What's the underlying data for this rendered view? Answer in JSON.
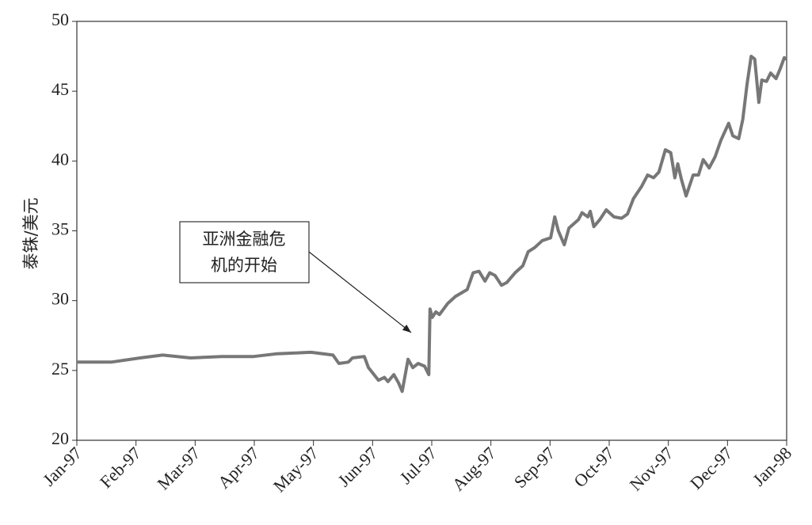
{
  "chart_data": {
    "type": "line",
    "y_label": "泰铢/美元",
    "annotation": [
      "亚洲金融危",
      "机的开始"
    ],
    "x": [
      0,
      0.58,
      1.07,
      1.45,
      1.92,
      2.45,
      2.99,
      3.39,
      3.96,
      4.33,
      4.43,
      4.59,
      4.66,
      4.86,
      4.93,
      5.1,
      5.2,
      5.26,
      5.36,
      5.44,
      5.5,
      5.6,
      5.68,
      5.77,
      5.88,
      5.95,
      5.97,
      6.01,
      6.07,
      6.13,
      6.27,
      6.4,
      6.6,
      6.7,
      6.8,
      6.9,
      6.98,
      7.07,
      7.18,
      7.27,
      7.41,
      7.54,
      7.63,
      7.74,
      7.87,
      8.01,
      8.08,
      8.14,
      8.24,
      8.32,
      8.48,
      8.54,
      8.64,
      8.68,
      8.74,
      8.84,
      8.95,
      9.08,
      9.21,
      9.31,
      9.41,
      9.55,
      9.65,
      9.75,
      9.84,
      9.95,
      10.04,
      10.11,
      10.16,
      10.22,
      10.3,
      10.42,
      10.51,
      10.59,
      10.69,
      10.79,
      10.89,
      11.02,
      11.09,
      11.19,
      11.26,
      11.33,
      11.4,
      11.46,
      11.53,
      11.58,
      11.66,
      11.73,
      11.82,
      11.89,
      11.96,
      12
    ],
    "series": [
      {
        "name": "THB/USD",
        "color": "#777777",
        "values": [
          25.6,
          25.6,
          25.9,
          26.1,
          25.9,
          26.0,
          26.0,
          26.2,
          26.3,
          26.1,
          25.5,
          25.6,
          25.9,
          26.0,
          25.2,
          24.3,
          24.5,
          24.2,
          24.7,
          24.1,
          23.5,
          25.8,
          25.2,
          25.5,
          25.3,
          24.7,
          29.4,
          28.8,
          29.2,
          29.0,
          29.8,
          30.3,
          30.8,
          32.0,
          32.1,
          31.4,
          32.0,
          31.8,
          31.1,
          31.3,
          32.0,
          32.5,
          33.5,
          33.8,
          34.3,
          34.5,
          36.0,
          35.0,
          34.0,
          35.2,
          35.8,
          36.3,
          36.0,
          36.4,
          35.3,
          35.8,
          36.5,
          36.0,
          35.9,
          36.2,
          37.3,
          38.2,
          39.0,
          38.8,
          39.2,
          40.8,
          40.6,
          38.8,
          39.8,
          38.7,
          37.5,
          39.0,
          39.0,
          40.1,
          39.5,
          40.3,
          41.5,
          42.7,
          41.8,
          41.6,
          43.0,
          45.5,
          47.5,
          47.3,
          44.2,
          45.8,
          45.7,
          46.3,
          45.9,
          46.6,
          47.4,
          47.3
        ]
      }
    ],
    "xlim": [
      0,
      12
    ],
    "xticks": [
      {
        "value": 0,
        "label": "Jan-97"
      },
      {
        "value": 1,
        "label": "Feb-97"
      },
      {
        "value": 2,
        "label": "Mar-97"
      },
      {
        "value": 3,
        "label": "Apr-97"
      },
      {
        "value": 4,
        "label": "May-97"
      },
      {
        "value": 5,
        "label": "Jun-97"
      },
      {
        "value": 6,
        "label": "Jul-97"
      },
      {
        "value": 7,
        "label": "Aug-97"
      },
      {
        "value": 8,
        "label": "Sep-97"
      },
      {
        "value": 9,
        "label": "Oct-97"
      },
      {
        "value": 10,
        "label": "Nov-97"
      },
      {
        "value": 11,
        "label": "Dec-97"
      },
      {
        "value": 12,
        "label": "Jan-98"
      }
    ],
    "ylim": [
      20,
      50
    ],
    "yticks": [
      20,
      25,
      30,
      35,
      40,
      45,
      50
    ],
    "grid": false
  }
}
